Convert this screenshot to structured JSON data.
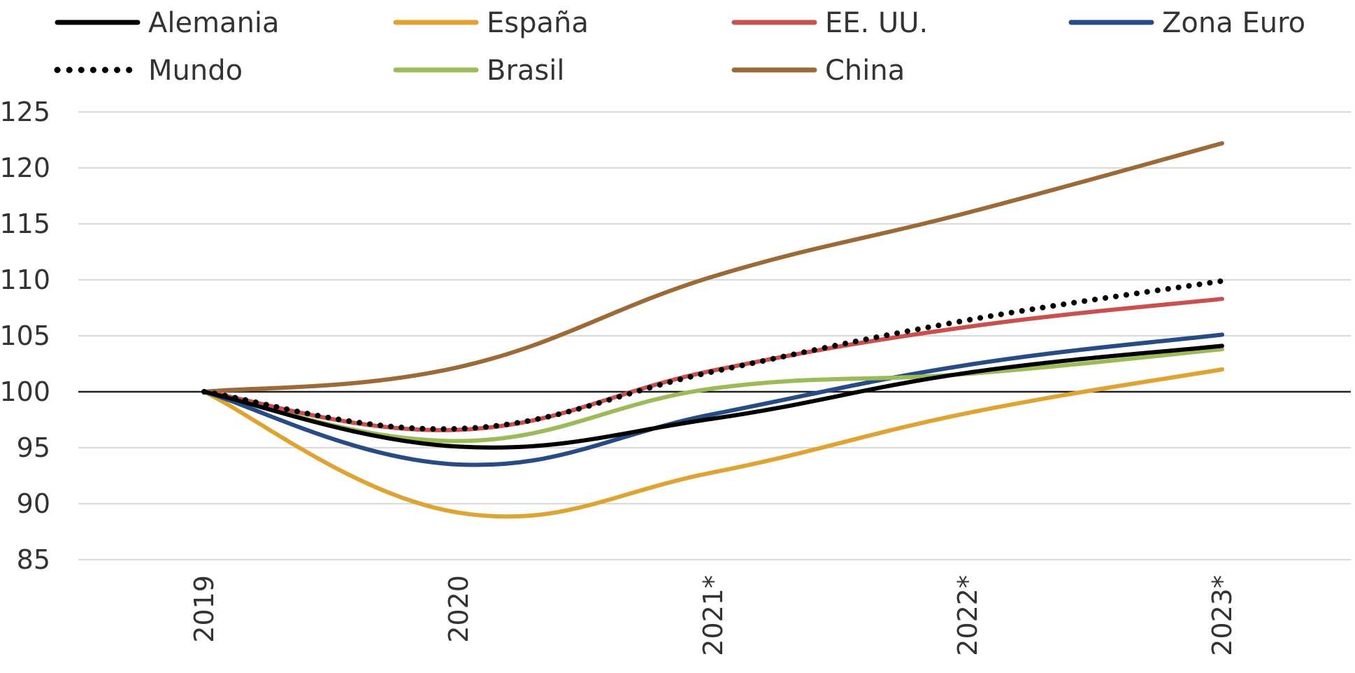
{
  "chart_data": {
    "type": "line",
    "title": "",
    "xlabel": "",
    "ylabel": "",
    "categories": [
      "2019",
      "2020",
      "2021*",
      "2022*",
      "2023*"
    ],
    "ylim": [
      85,
      125
    ],
    "yticks": [
      85,
      90,
      95,
      100,
      105,
      110,
      115,
      120,
      125
    ],
    "grid": true,
    "baseline": 100,
    "legend_position": "top",
    "series": [
      {
        "name": "Alemania",
        "color": "#000000",
        "dotted": false,
        "values": [
          100,
          95.1,
          97.6,
          101.7,
          104.1
        ]
      },
      {
        "name": "España",
        "color": "#DDA333",
        "dotted": false,
        "values": [
          100,
          89.2,
          92.8,
          98.1,
          102.0
        ]
      },
      {
        "name": "EE. UU.",
        "color": "#C9504F",
        "dotted": false,
        "values": [
          100,
          96.6,
          101.9,
          105.8,
          108.3
        ]
      },
      {
        "name": "Zona Euro",
        "color": "#264B85",
        "dotted": false,
        "values": [
          100,
          93.5,
          98.0,
          102.4,
          105.1
        ]
      },
      {
        "name": "Mundo",
        "color": "#000000",
        "dotted": true,
        "values": [
          100,
          96.7,
          101.8,
          106.4,
          109.9
        ]
      },
      {
        "name": "Brasil",
        "color": "#9BBB59",
        "dotted": false,
        "values": [
          100,
          95.6,
          100.3,
          101.6,
          103.8
        ]
      },
      {
        "name": "China",
        "color": "#9C6A36",
        "dotted": false,
        "values": [
          100,
          102.2,
          110.3,
          116.0,
          122.2
        ]
      }
    ]
  }
}
